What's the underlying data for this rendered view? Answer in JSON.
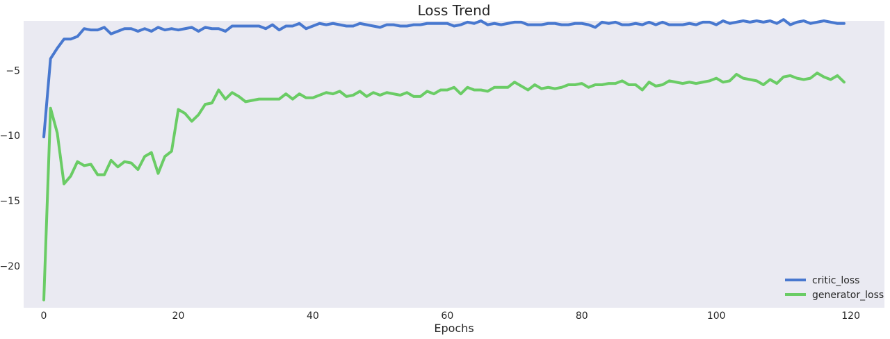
{
  "chart_data": {
    "type": "line",
    "title": "Loss Trend",
    "xlabel": "Epochs",
    "ylabel": "",
    "xlim": [
      -3,
      125
    ],
    "ylim": [
      -23.2,
      -1.2
    ],
    "xticks": [
      0,
      20,
      40,
      60,
      80,
      100,
      120
    ],
    "yticks": [
      -20,
      -15,
      -10,
      -5
    ],
    "grid": false,
    "legend_position": "bottom-right",
    "background": "#eaeaf2",
    "series": [
      {
        "name": "critic_loss",
        "color": "#4878cf",
        "values": [
          -10.1,
          -4.1,
          -3.3,
          -2.6,
          -2.6,
          -2.4,
          -1.8,
          -1.9,
          -1.9,
          -1.7,
          -2.2,
          -2.0,
          -1.8,
          -1.8,
          -2.0,
          -1.8,
          -2.0,
          -1.7,
          -1.9,
          -1.8,
          -1.9,
          -1.8,
          -1.7,
          -2.0,
          -1.7,
          -1.8,
          -1.8,
          -2.0,
          -1.6,
          -1.6,
          -1.6,
          -1.6,
          -1.6,
          -1.8,
          -1.5,
          -1.9,
          -1.6,
          -1.6,
          -1.4,
          -1.8,
          -1.6,
          -1.4,
          -1.5,
          -1.4,
          -1.5,
          -1.6,
          -1.6,
          -1.4,
          -1.5,
          -1.6,
          -1.7,
          -1.5,
          -1.5,
          -1.6,
          -1.6,
          -1.5,
          -1.5,
          -1.4,
          -1.4,
          -1.4,
          -1.4,
          -1.6,
          -1.5,
          -1.3,
          -1.4,
          -1.2,
          -1.5,
          -1.4,
          -1.5,
          -1.4,
          -1.3,
          -1.3,
          -1.5,
          -1.5,
          -1.5,
          -1.4,
          -1.4,
          -1.5,
          -1.5,
          -1.4,
          -1.4,
          -1.5,
          -1.7,
          -1.3,
          -1.4,
          -1.3,
          -1.5,
          -1.5,
          -1.4,
          -1.5,
          -1.3,
          -1.5,
          -1.3,
          -1.5,
          -1.5,
          -1.5,
          -1.4,
          -1.5,
          -1.3,
          -1.3,
          -1.5,
          -1.2,
          -1.4,
          -1.3,
          -1.2,
          -1.3,
          -1.2,
          -1.3,
          -1.2,
          -1.4,
          -1.1,
          -1.5,
          -1.3,
          -1.2,
          -1.4,
          -1.3,
          -1.2,
          -1.3,
          -1.4,
          -1.4
        ]
      },
      {
        "name": "generator_loss",
        "color": "#6acc65",
        "values": [
          -22.6,
          -7.9,
          -9.8,
          -13.7,
          -13.1,
          -12.0,
          -12.3,
          -12.2,
          -13.0,
          -13.0,
          -11.9,
          -12.4,
          -12.0,
          -12.1,
          -12.6,
          -11.6,
          -11.3,
          -12.9,
          -11.6,
          -11.2,
          -8.0,
          -8.3,
          -8.9,
          -8.4,
          -7.6,
          -7.5,
          -6.5,
          -7.2,
          -6.7,
          -7.0,
          -7.4,
          -7.3,
          -7.2,
          -7.2,
          -7.2,
          -7.2,
          -6.8,
          -7.2,
          -6.8,
          -7.1,
          -7.1,
          -6.9,
          -6.7,
          -6.8,
          -6.6,
          -7.0,
          -6.9,
          -6.6,
          -7.0,
          -6.7,
          -6.9,
          -6.7,
          -6.8,
          -6.9,
          -6.7,
          -7.0,
          -7.0,
          -6.6,
          -6.8,
          -6.5,
          -6.5,
          -6.3,
          -6.8,
          -6.3,
          -6.5,
          -6.5,
          -6.6,
          -6.3,
          -6.3,
          -6.3,
          -5.9,
          -6.2,
          -6.5,
          -6.1,
          -6.4,
          -6.3,
          -6.4,
          -6.3,
          -6.1,
          -6.1,
          -6.0,
          -6.3,
          -6.1,
          -6.1,
          -6.0,
          -6.0,
          -5.8,
          -6.1,
          -6.1,
          -6.5,
          -5.9,
          -6.2,
          -6.1,
          -5.8,
          -5.9,
          -6.0,
          -5.9,
          -6.0,
          -5.9,
          -5.8,
          -5.6,
          -5.9,
          -5.8,
          -5.3,
          -5.6,
          -5.7,
          -5.8,
          -6.1,
          -5.7,
          -6.0,
          -5.5,
          -5.4,
          -5.6,
          -5.7,
          -5.6,
          -5.2,
          -5.5,
          -5.7,
          -5.4,
          -5.9
        ]
      }
    ]
  }
}
